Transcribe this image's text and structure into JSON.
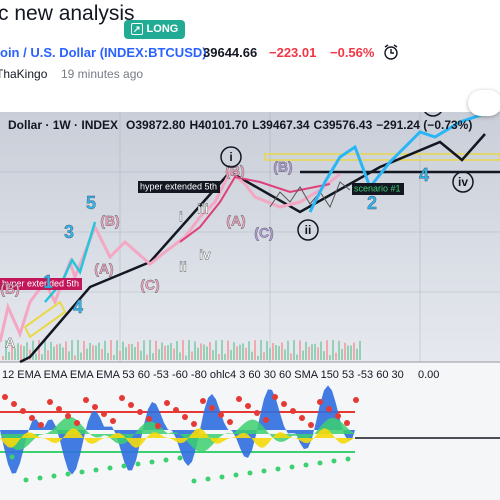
{
  "header": {
    "title": "c new analysis",
    "badge": "LONG"
  },
  "symbol": {
    "name": "oin / U.S. Dollar",
    "ticker": "(INDEX:BTCUSD)",
    "price": "39644.66",
    "change": "−223.01",
    "change_percent": "−0.56%"
  },
  "author": {
    "name": "ThaKingo",
    "time": "19 minutes ago"
  },
  "chart": {
    "legend": {
      "symbol": "Dollar",
      "interval": "1W",
      "source": "INDEX",
      "open": "O39872.80",
      "high": "H40101.70",
      "low": "L39467.34",
      "close": "C39576.43",
      "change": "−291.24 (−0.73%)"
    },
    "notes": [
      "hyper extended 5th",
      "hyper extended 5th",
      "scenario #1"
    ],
    "waves": [
      "(B)",
      "(B)",
      "(A)",
      "(C)",
      "(A)",
      "(B)",
      "(C)",
      "5",
      "3",
      "1",
      "4",
      "i",
      "ii",
      "iii",
      "iv",
      "2",
      "4",
      "(B)",
      "A"
    ],
    "circled": [
      "i",
      "ii",
      "iii",
      "iv"
    ],
    "indicator_legend": "12 EMA EMA EMA EMA 53 60 -53 -60 -80 ohlc4 3 60 30 60 SMA 150 53 -53 60 30",
    "indicator_value": "0.00"
  }
}
